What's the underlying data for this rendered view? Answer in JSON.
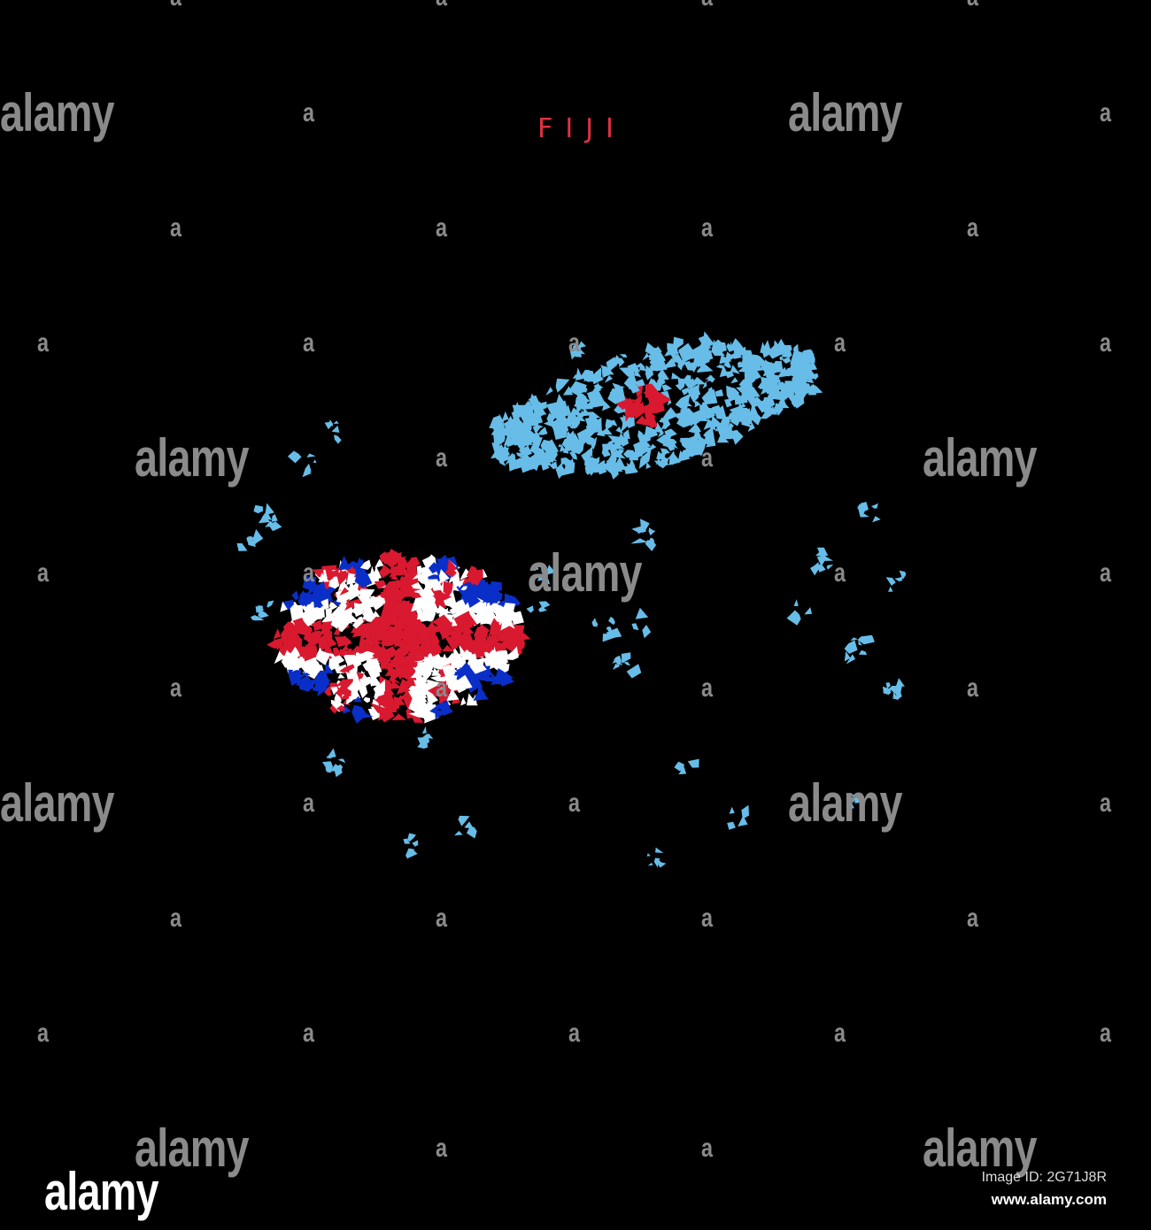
{
  "title": "FIJI",
  "colors": {
    "background": "#000000",
    "title": "#e0313f",
    "islands": "#67bde8",
    "flag_red": "#d9192f",
    "flag_blue": "#0a2fc8",
    "flag_white": "#ffffff",
    "watermark": "#8a8a8a"
  },
  "watermark": {
    "text": "alamy",
    "letter": "a"
  },
  "footer": {
    "logo": "alamy",
    "image_id": "Image ID: 2G71J8R",
    "site": "www.alamy.com"
  }
}
